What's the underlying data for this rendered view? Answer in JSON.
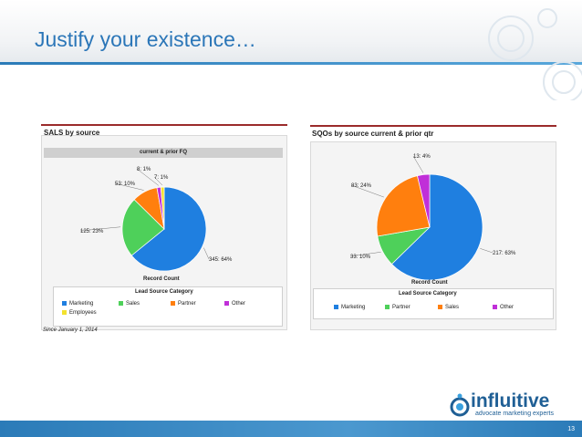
{
  "slide": {
    "title": "Justify your existence…",
    "page_number": "13",
    "brand": "influitive",
    "tagline": "advocate marketing experts",
    "accent_color": "#2b76b8",
    "icons": [
      "circles-decoration-icon",
      "influitive-logo-icon"
    ]
  },
  "chart_data": [
    {
      "type": "pie",
      "title": "SALS by source",
      "subtitle": "current & prior FQ",
      "value_label": "Record Count",
      "legend_title": "Lead Source Category",
      "legend_position": "bottom",
      "footnote": "Since January 1, 2014",
      "slices": [
        {
          "name": "Marketing",
          "value": 345,
          "label": "345: 64%",
          "color": "#1f7fe0"
        },
        {
          "name": "Sales",
          "value": 125,
          "label": "125: 23%",
          "color": "#4ed05a"
        },
        {
          "name": "Partner",
          "value": 53,
          "label": "53: 10%",
          "color": "#ff7f0e"
        },
        {
          "name": "Other",
          "value": 8,
          "label": "8: 1%",
          "color": "#c02fd8"
        },
        {
          "name": "Employees",
          "value": 7,
          "label": "7: 1%",
          "color": "#f3e22e"
        }
      ]
    },
    {
      "type": "pie",
      "title": "SQOs by source current & prior qtr",
      "value_label": "Record Count",
      "legend_title": "Lead Source Category",
      "legend_position": "bottom",
      "slices": [
        {
          "name": "Marketing",
          "value": 217,
          "label": "217: 63%",
          "color": "#1f7fe0"
        },
        {
          "name": "Partner",
          "value": 33,
          "label": "33: 10%",
          "color": "#4ed05a"
        },
        {
          "name": "Sales",
          "value": 83,
          "label": "83: 24%",
          "color": "#ff7f0e"
        },
        {
          "name": "Other",
          "value": 13,
          "label": "13: 4%",
          "color": "#c02fd8"
        }
      ]
    }
  ]
}
